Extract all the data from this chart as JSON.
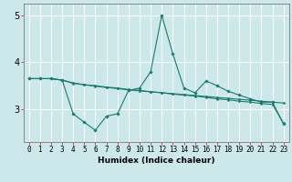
{
  "xlabel": "Humidex (Indice chaleur)",
  "x_values": [
    0,
    1,
    2,
    3,
    4,
    5,
    6,
    7,
    8,
    9,
    10,
    11,
    12,
    13,
    14,
    15,
    16,
    17,
    18,
    19,
    20,
    21,
    22,
    23
  ],
  "line1_y": [
    3.65,
    3.65,
    3.65,
    3.62,
    2.9,
    2.72,
    2.55,
    2.85,
    2.9,
    3.4,
    3.45,
    3.8,
    5.0,
    4.18,
    3.45,
    3.35,
    3.6,
    3.5,
    3.38,
    3.3,
    3.22,
    3.15,
    3.15,
    2.68
  ],
  "line2_y": [
    3.65,
    3.65,
    3.65,
    3.62,
    3.55,
    3.52,
    3.5,
    3.47,
    3.45,
    3.42,
    3.4,
    3.37,
    3.35,
    3.32,
    3.3,
    3.28,
    3.25,
    3.22,
    3.2,
    3.17,
    3.15,
    3.12,
    3.1,
    2.7
  ],
  "line3_y": [
    3.65,
    3.65,
    3.65,
    3.62,
    3.56,
    3.52,
    3.49,
    3.46,
    3.44,
    3.41,
    3.39,
    3.37,
    3.35,
    3.33,
    3.31,
    3.29,
    3.27,
    3.25,
    3.23,
    3.21,
    3.19,
    3.17,
    3.15,
    3.13
  ],
  "line_color": "#1a7a6e",
  "bg_color": "#cce8ea",
  "grid_color": "#ffffff",
  "spine_color": "#888888",
  "ylim": [
    2.3,
    5.25
  ],
  "xlim": [
    -0.5,
    23.5
  ],
  "yticks": [
    3,
    4,
    5
  ],
  "xlabel_fontsize": 6.5,
  "tick_fontsize": 5.5,
  "ytick_fontsize": 7
}
